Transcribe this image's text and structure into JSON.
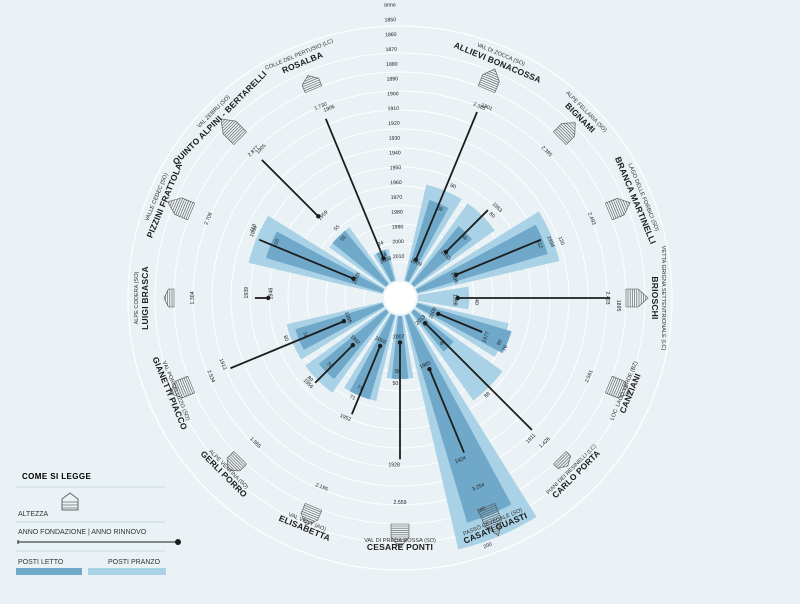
{
  "legend": {
    "title": "COME SI LEGGE",
    "altitude": "ALTEZZA",
    "years": "ANNO FONDAZIONE | ANNO RINNOVO",
    "beds": "POSTI LETTO",
    "meals": "POSTI PRANZO"
  },
  "colors": {
    "background": "#eaf2f6",
    "grid": "#ffffff",
    "beds": "#6fa8c9",
    "meals": "#a9d2e6",
    "line": "#1d1d1b",
    "altitude_hatch": "#555555"
  },
  "year_scale": [
    "1850",
    "1860",
    "1870",
    "1880",
    "1890",
    "1900",
    "1910",
    "1920",
    "1930",
    "1940",
    "1950",
    "1960",
    "1970",
    "1980",
    "1990",
    "2000",
    "2010"
  ],
  "year_scale_header": "anno",
  "chart_data": {
    "type": "radial-bar",
    "title": "",
    "fields": [
      "altitude_m",
      "founded",
      "renovated",
      "beds",
      "meals"
    ],
    "huts": [
      {
        "name": "ALLIEVI BONACOSSA",
        "location": "VAL DI ZOCCA (SO)",
        "altitude": "2.385",
        "founded": "1901",
        "renewed": "2009",
        "beds": "68",
        "meals": "80"
      },
      {
        "name": "BIGNAMI",
        "location": "ALPE FELLARIA (SO)",
        "altitude": "2.385",
        "founded": "1953",
        "renewed": "1993",
        "beds": "60",
        "meals": "80"
      },
      {
        "name": "BRANCA MARTINELLI",
        "location": "LAGO DELLE FORBICI (SO)",
        "altitude": "2.493",
        "founded": "1934",
        "renewed": "1996",
        "beds": "112",
        "meals": "120"
      },
      {
        "name": "BRIOSCHI",
        "location": "VETTA GRIGNA SETTENTRIONALE (LC)",
        "altitude": "2.403",
        "founded": "1895",
        "renewed": "1998",
        "beds": "",
        "meals": "40"
      },
      {
        "name": "CANZIANI",
        "location": "LOC. LAGO VERDE (BZ)",
        "altitude": "2.561",
        "founded": "1977",
        "renewed": "2009",
        "beds": "80",
        "meals": "76"
      },
      {
        "name": "CARLO PORTA",
        "location": "PIANI DEI RESINELLI (LC)",
        "altitude": "1.426",
        "founded": "1911",
        "renewed": "2013",
        "beds": "40",
        "meals": "88"
      },
      {
        "name": "CASATI GUASTI",
        "location": "PASSO CEVEDALE (SO)",
        "altitude": "3.254",
        "founded": "1924",
        "renewed": "1985",
        "beds": "180",
        "meals": "200"
      },
      {
        "name": "CESARE PONTI",
        "location": "VAL DI PREDA ROSSA (SO)",
        "altitude": "2.559",
        "founded": "1928",
        "renewed": "2007",
        "beds": "50",
        "meals": "50"
      },
      {
        "name": "ELISABETTA",
        "location": "VAL VENY (AO)",
        "altitude": "2.195",
        "founded": "1952",
        "renewed": "2002",
        "beds": "71",
        "meals": "71"
      },
      {
        "name": "GERLI PORRO",
        "location": "ALPE VENTINA (SO)",
        "altitude": "1.965",
        "founded": "1956",
        "renewed": "1992",
        "beds": "70",
        "meals": "80"
      },
      {
        "name": "GIANETTI PIACCO",
        "location": "VAL PORCELLIZZO (SO)",
        "altitude": "2.534",
        "founded": "1913",
        "renewed": "1996",
        "beds": "74",
        "meals": "80"
      },
      {
        "name": "LUIGI BRASCA",
        "location": "ALPE CODERA (SO)",
        "altitude": "1.304",
        "founded": "1939",
        "renewed": "1948",
        "beds": "",
        "meals": ""
      },
      {
        "name": "PIZZINI FRATTOLA",
        "location": "VALLE CEDEC (SO)",
        "altitude": "2.706",
        "founded": "1934",
        "renewed": "2003",
        "beds": "100",
        "meals": "113"
      },
      {
        "name": "QUINTO ALPINI - BERTARELLI",
        "location": "VAL ZEBRU (SO)",
        "altitude": "2.877",
        "founded": "1905",
        "renewed": "1959",
        "beds": "55",
        "meals": "55"
      },
      {
        "name": "ROSALBA",
        "location": "COLLE DEL PERTUSIO (LC)",
        "altitude": "1.730",
        "founded": "1906",
        "renewed": "2008",
        "beds": "24",
        "meals": "24"
      }
    ]
  }
}
